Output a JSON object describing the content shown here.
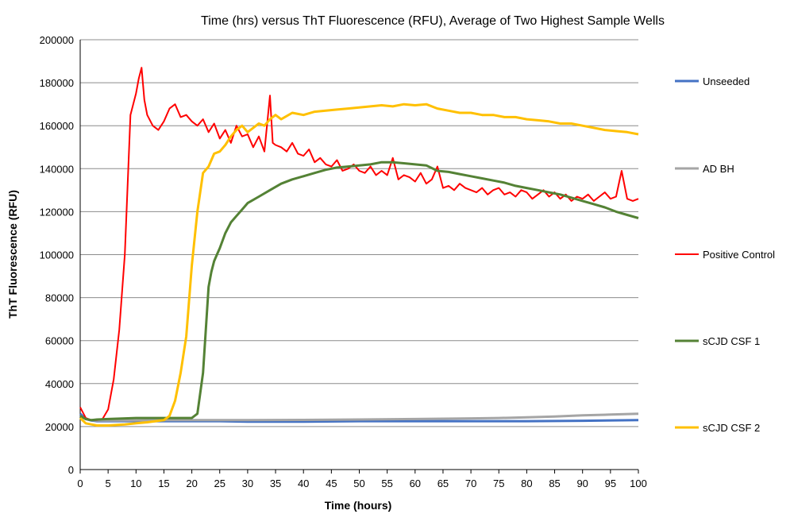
{
  "chart_data": {
    "type": "line",
    "title": "Time (hrs) versus ThT Fluorescence (RFU), Average of Two Highest Sample Wells",
    "xlabel": "Time (hours)",
    "ylabel": "ThT Fluorescence (RFU)",
    "xlim": [
      0,
      100
    ],
    "ylim": [
      0,
      200000
    ],
    "xticks": [
      "0",
      "5",
      "10",
      "15",
      "20",
      "25",
      "30",
      "35",
      "40",
      "45",
      "50",
      "55",
      "60",
      "65",
      "70",
      "75",
      "80",
      "85",
      "90",
      "95",
      "100"
    ],
    "yticks": [
      "0",
      "20000",
      "40000",
      "60000",
      "80000",
      "100000",
      "120000",
      "140000",
      "160000",
      "180000",
      "200000"
    ],
    "grid": "horizontal",
    "legend_position": "right",
    "series": [
      {
        "name": "Unseeded",
        "color": "#4472c4",
        "x": [
          0,
          1,
          2,
          3,
          5,
          10,
          15,
          20,
          25,
          30,
          40,
          50,
          60,
          70,
          80,
          90,
          100
        ],
        "y": [
          26000,
          23500,
          22800,
          22500,
          22500,
          22500,
          22500,
          22500,
          22500,
          22300,
          22300,
          22500,
          22500,
          22500,
          22500,
          22700,
          23000
        ]
      },
      {
        "name": "AD BH",
        "color": "#a5a5a5",
        "x": [
          0,
          1,
          2,
          3,
          5,
          10,
          15,
          20,
          25,
          30,
          40,
          50,
          60,
          70,
          75,
          80,
          85,
          90,
          95,
          100
        ],
        "y": [
          25000,
          23500,
          23000,
          22800,
          22800,
          22900,
          23000,
          23000,
          23000,
          23000,
          23100,
          23300,
          23500,
          23800,
          24000,
          24300,
          24700,
          25200,
          25600,
          26000
        ]
      },
      {
        "name": "Positive Control",
        "color": "#ff0000",
        "x": [
          0,
          1,
          2,
          3,
          4,
          5,
          6,
          7,
          8,
          9,
          10,
          10.5,
          11,
          11.5,
          12,
          13,
          14,
          15,
          16,
          17,
          18,
          19,
          20,
          21,
          22,
          23,
          24,
          25,
          26,
          27,
          28,
          29,
          30,
          31,
          32,
          33,
          34,
          34.5,
          35,
          36,
          37,
          38,
          39,
          40,
          41,
          42,
          43,
          44,
          45,
          46,
          47,
          48,
          49,
          50,
          51,
          52,
          53,
          54,
          55,
          56,
          57,
          58,
          59,
          60,
          61,
          62,
          63,
          64,
          65,
          66,
          67,
          68,
          69,
          70,
          71,
          72,
          73,
          74,
          75,
          76,
          77,
          78,
          79,
          80,
          81,
          82,
          83,
          84,
          85,
          86,
          87,
          88,
          89,
          90,
          91,
          92,
          93,
          94,
          95,
          96,
          97,
          98,
          99,
          100
        ],
        "y": [
          29000,
          24000,
          23000,
          23000,
          23500,
          28000,
          42000,
          65000,
          100000,
          165000,
          175000,
          182000,
          187000,
          172000,
          165000,
          160000,
          158000,
          162000,
          168000,
          170000,
          164000,
          165000,
          162000,
          160000,
          163000,
          157000,
          161000,
          154000,
          158000,
          152000,
          160000,
          155000,
          156000,
          150000,
          155000,
          148000,
          174000,
          152000,
          151000,
          150000,
          148000,
          152000,
          147000,
          146000,
          149000,
          143000,
          145000,
          142000,
          141000,
          144000,
          139000,
          140000,
          142000,
          139000,
          138000,
          141000,
          137000,
          139000,
          137000,
          145000,
          135000,
          137000,
          136000,
          134000,
          138000,
          133000,
          135000,
          141000,
          131000,
          132000,
          130000,
          133000,
          131000,
          130000,
          129000,
          131000,
          128000,
          130000,
          131000,
          128000,
          129000,
          127000,
          130000,
          129000,
          126000,
          128000,
          130000,
          127000,
          129000,
          126000,
          128000,
          125000,
          127000,
          126000,
          128000,
          125000,
          127000,
          129000,
          126000,
          127000,
          139000,
          126000,
          125000,
          126000
        ]
      },
      {
        "name": "sCJD CSF 1",
        "color": "#548235",
        "x": [
          0,
          1,
          2,
          3,
          5,
          10,
          15,
          18,
          20,
          21,
          22,
          22.5,
          23,
          23.5,
          24,
          24.5,
          25,
          26,
          27,
          28,
          29,
          30,
          32,
          34,
          36,
          38,
          40,
          42,
          44,
          46,
          48,
          50,
          52,
          54,
          56,
          58,
          60,
          62,
          64,
          66,
          68,
          70,
          72,
          74,
          76,
          78,
          80,
          82,
          84,
          86,
          88,
          90,
          92,
          94,
          96,
          98,
          100
        ],
        "y": [
          25000,
          23500,
          23000,
          23300,
          23500,
          24000,
          24000,
          24000,
          24000,
          26000,
          45000,
          65000,
          85000,
          92000,
          97000,
          100000,
          103000,
          110000,
          115000,
          118000,
          121000,
          124000,
          127000,
          130000,
          133000,
          135000,
          136500,
          138000,
          139500,
          140500,
          141000,
          141500,
          142000,
          143000,
          143000,
          142500,
          142000,
          141500,
          139000,
          138500,
          137500,
          136500,
          135500,
          134500,
          133500,
          132000,
          131000,
          130000,
          129000,
          128000,
          126500,
          125000,
          123500,
          122000,
          120000,
          118500,
          117000
        ]
      },
      {
        "name": "sCJD CSF 2",
        "color": "#ffc000",
        "x": [
          0,
          1,
          2,
          3,
          4,
          5,
          8,
          10,
          12,
          15,
          16,
          17,
          18,
          19,
          20,
          21,
          22,
          23,
          24,
          25,
          26,
          27,
          28,
          29,
          30,
          31,
          32,
          33,
          34,
          35,
          36,
          38,
          40,
          42,
          44,
          46,
          48,
          50,
          52,
          54,
          56,
          58,
          60,
          62,
          64,
          66,
          68,
          70,
          72,
          74,
          76,
          78,
          80,
          82,
          84,
          86,
          88,
          90,
          92,
          94,
          96,
          98,
          100
        ],
        "y": [
          24000,
          21500,
          21000,
          20500,
          20500,
          20500,
          21000,
          21500,
          22000,
          23000,
          25000,
          32000,
          45000,
          62000,
          95000,
          120000,
          138000,
          141000,
          147000,
          148000,
          151000,
          155000,
          158000,
          160000,
          157000,
          159000,
          161000,
          160000,
          163000,
          165000,
          163000,
          166000,
          165000,
          166500,
          167000,
          167500,
          168000,
          168500,
          169000,
          169500,
          169000,
          170000,
          169500,
          170000,
          168000,
          167000,
          166000,
          166000,
          165000,
          165000,
          164000,
          164000,
          163000,
          162500,
          162000,
          161000,
          161000,
          160000,
          159000,
          158000,
          157500,
          157000,
          156000
        ]
      }
    ]
  }
}
